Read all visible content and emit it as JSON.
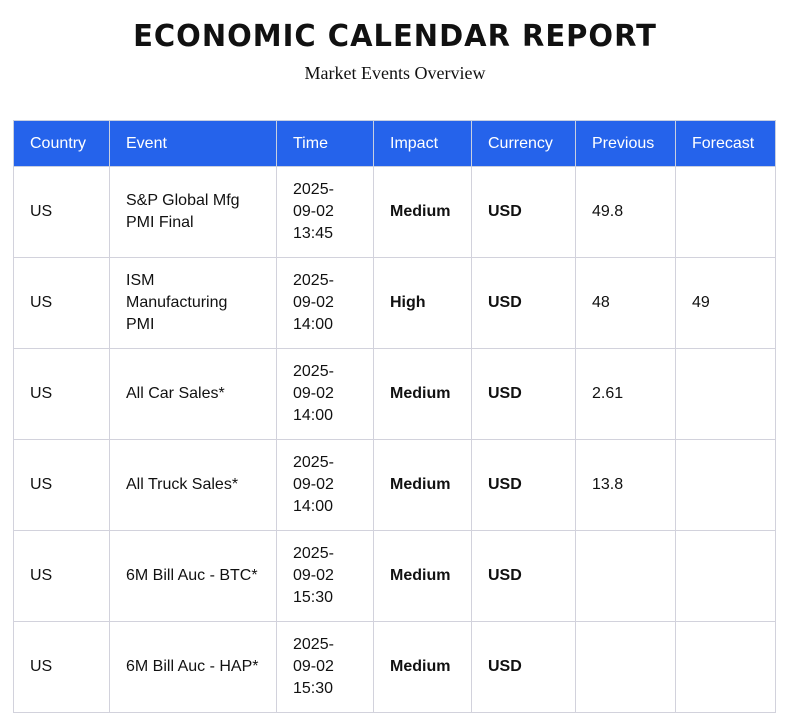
{
  "header": {
    "title": "ECONOMIC CALENDAR REPORT",
    "subtitle": "Market Events Overview"
  },
  "accent_color": "#2563eb",
  "table": {
    "columns": [
      "Country",
      "Event",
      "Time",
      "Impact",
      "Currency",
      "Previous",
      "Forecast"
    ],
    "rows": [
      [
        "US",
        "S&P Global Mfg PMI Final",
        "2025-09-02 13:45",
        "Medium",
        "USD",
        "49.8",
        ""
      ],
      [
        "US",
        "ISM Manufacturing PMI",
        "2025-09-02 14:00",
        "High",
        "USD",
        "48",
        "49"
      ],
      [
        "US",
        "All Car Sales*",
        "2025-09-02 14:00",
        "Medium",
        "USD",
        "2.61",
        ""
      ],
      [
        "US",
        "All Truck Sales*",
        "2025-09-02 14:00",
        "Medium",
        "USD",
        "13.8",
        ""
      ],
      [
        "US",
        "6M Bill Auc - BTC*",
        "2025-09-02 15:30",
        "Medium",
        "USD",
        "",
        ""
      ],
      [
        "US",
        "6M Bill Auc - HAP*",
        "2025-09-02 15:30",
        "Medium",
        "USD",
        "",
        ""
      ]
    ]
  }
}
